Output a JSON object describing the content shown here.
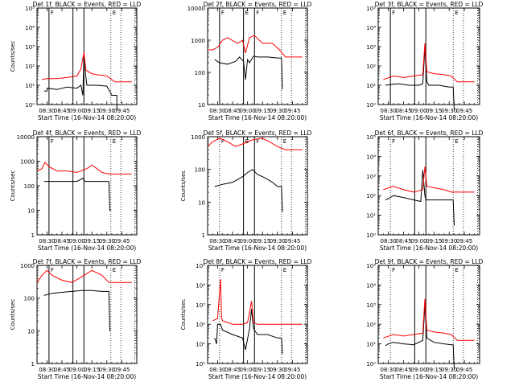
{
  "window": {
    "width_note": ""
  },
  "colors": {
    "events": "#000000",
    "lld": "#ff0000",
    "axis": "#000000",
    "background": "#ffffff"
  },
  "xaxis": {
    "label": "Start Time (16-Nov-14 08:20:00)",
    "tick_labels": [
      "08:30",
      "08:45",
      "09:00",
      "09:15",
      "09:30",
      "09:45"
    ],
    "range_minutes": [
      0,
      100
    ]
  },
  "chart_data": [
    {
      "title": "Det 1f, BLACK = Events, RED = LLD",
      "type": "line",
      "yscale": "log",
      "ylim": [
        1,
        100000
      ],
      "ytick_labels": [
        "10⁰",
        "10¹",
        "10²",
        "10³",
        "10⁴",
        "10⁵"
      ],
      "ylabel": "Counts/sec",
      "vlines_solid": [
        12,
        36,
        47
      ],
      "vlines_dotted": [
        74,
        84,
        98
      ],
      "markers": [
        {
          "text": "F",
          "x": 12
        },
        {
          "text": "E",
          "x": 74
        }
      ],
      "series": [
        {
          "name": "Events",
          "color": "#000000",
          "x": [
            7,
            10,
            10,
            20,
            30,
            40,
            44,
            46,
            47,
            49,
            50,
            60,
            70,
            75,
            80,
            80
          ],
          "y": [
            5,
            5,
            7,
            6,
            8,
            7,
            10,
            3,
            400,
            25,
            10,
            10,
            9,
            3,
            3,
            0.5
          ]
        },
        {
          "name": "LLD",
          "color": "#ff0000",
          "x": [
            5,
            10,
            20,
            30,
            40,
            44,
            47,
            49,
            55,
            60,
            70,
            78,
            85,
            95
          ],
          "y": [
            20,
            22,
            22,
            25,
            30,
            70,
            500,
            60,
            40,
            35,
            30,
            15,
            15,
            15
          ]
        }
      ]
    },
    {
      "title": "Det 2f, BLACK = Events, RED = LLD",
      "type": "line",
      "yscale": "log",
      "ylim": [
        10,
        10000
      ],
      "ytick_labels": [
        "10",
        "100",
        "1000",
        "10000"
      ],
      "ylabel": "",
      "vlines_solid": [
        12,
        36,
        47
      ],
      "vlines_dotted": [
        74,
        84,
        98
      ],
      "markers": [
        {
          "text": "F",
          "x": 12
        },
        {
          "text": "E",
          "x": 36
        },
        {
          "text": "F",
          "x": 47
        },
        {
          "text": "E",
          "x": 74
        }
      ],
      "series": [
        {
          "name": "Events",
          "color": "#000000",
          "x": [
            7,
            12,
            20,
            28,
            32,
            36,
            38,
            40,
            42,
            46,
            50,
            60,
            70,
            74,
            75
          ],
          "y": [
            250,
            200,
            180,
            220,
            300,
            220,
            60,
            250,
            200,
            320,
            300,
            300,
            280,
            280,
            30
          ]
        },
        {
          "name": "LLD",
          "color": "#ff0000",
          "x": [
            0,
            5,
            10,
            15,
            20,
            30,
            35,
            38,
            42,
            47,
            55,
            65,
            72,
            78,
            85,
            95
          ],
          "y": [
            500,
            500,
            600,
            1000,
            1200,
            800,
            1000,
            400,
            1200,
            1400,
            800,
            800,
            500,
            300,
            300,
            300
          ]
        }
      ]
    },
    {
      "title": "Det 3f, BLACK = Events, RED = LLD",
      "type": "line",
      "yscale": "log",
      "ylim": [
        1,
        100000
      ],
      "ytick_labels": [
        "10⁰",
        "10¹",
        "10²",
        "10³",
        "10⁴",
        "10⁵"
      ],
      "ylabel": "",
      "vlines_solid": [
        12,
        36,
        47
      ],
      "vlines_dotted": [
        74,
        84,
        98
      ],
      "markers": [
        {
          "text": "F",
          "x": 12
        },
        {
          "text": "E",
          "x": 74
        }
      ],
      "series": [
        {
          "name": "Events",
          "color": "#000000",
          "x": [
            7,
            20,
            30,
            40,
            44,
            46,
            48,
            50,
            60,
            70,
            74,
            75
          ],
          "y": [
            10,
            12,
            10,
            10,
            12,
            800,
            15,
            10,
            10,
            8,
            8,
            0.5
          ]
        },
        {
          "name": "LLD",
          "color": "#ff0000",
          "x": [
            5,
            15,
            25,
            35,
            44,
            46,
            48,
            55,
            65,
            72,
            78,
            85,
            95
          ],
          "y": [
            20,
            30,
            25,
            30,
            35,
            1500,
            50,
            40,
            35,
            30,
            15,
            15,
            15
          ]
        }
      ]
    },
    {
      "title": "Det 4f, BLACK = Events, RED = LLD",
      "type": "line",
      "yscale": "log",
      "ylim": [
        1,
        10000
      ],
      "ytick_labels": [
        "1",
        "10",
        "100",
        "1000",
        "10000"
      ],
      "ylabel": "Counts/sec",
      "vlines_solid": [
        12,
        36,
        47
      ],
      "vlines_dotted": [
        74,
        84,
        98
      ],
      "markers": [
        {
          "text": "F",
          "x": 12
        },
        {
          "text": "E",
          "x": 74
        }
      ],
      "series": [
        {
          "name": "Events",
          "color": "#000000",
          "x": [
            7,
            20,
            30,
            40,
            46,
            48,
            55,
            65,
            72,
            73,
            74
          ],
          "y": [
            150,
            150,
            150,
            150,
            200,
            150,
            150,
            150,
            150,
            10,
            10
          ]
        },
        {
          "name": "LLD",
          "color": "#ff0000",
          "x": [
            0,
            5,
            8,
            12,
            20,
            30,
            40,
            50,
            55,
            60,
            65,
            72,
            80,
            95
          ],
          "y": [
            400,
            500,
            900,
            600,
            400,
            400,
            350,
            500,
            700,
            500,
            350,
            300,
            300,
            300
          ]
        }
      ]
    },
    {
      "title": "Det 5f, BLACK = Events, RED = LLD",
      "type": "line",
      "yscale": "log",
      "ylim": [
        1,
        1000
      ],
      "ytick_labels": [
        "1",
        "10",
        "100",
        "1000"
      ],
      "ylabel": "Counts/sec",
      "vlines_solid": [
        36,
        47
      ],
      "vlines_dotted": [
        12,
        74,
        84,
        98
      ],
      "markers": [
        {
          "text": "F",
          "x": 12
        },
        {
          "text": "E",
          "x": 36
        },
        {
          "text": "F",
          "x": 47
        },
        {
          "text": "E",
          "x": 74
        }
      ],
      "series": [
        {
          "name": "Events",
          "color": "#000000",
          "x": [
            7,
            15,
            25,
            35,
            40,
            45,
            50,
            55,
            60,
            65,
            70,
            74,
            75
          ],
          "y": [
            30,
            35,
            40,
            60,
            80,
            100,
            70,
            60,
            50,
            40,
            30,
            30,
            5
          ]
        },
        {
          "name": "LLD",
          "color": "#ff0000",
          "x": [
            0,
            5,
            12,
            20,
            28,
            35,
            45,
            55,
            62,
            70,
            78,
            85,
            95
          ],
          "y": [
            500,
            700,
            900,
            700,
            500,
            600,
            800,
            900,
            700,
            500,
            400,
            400,
            400
          ]
        }
      ]
    },
    {
      "title": "Det 6f, BLACK = Events, RED = LLD",
      "type": "line",
      "yscale": "log",
      "ylim": [
        1,
        100000
      ],
      "ytick_labels": [
        "10⁰",
        "10¹",
        "10²",
        "10³",
        "10⁴",
        "10⁵"
      ],
      "ylabel": "",
      "vlines_solid": [
        36,
        47
      ],
      "vlines_dotted": [
        12,
        74,
        84,
        98
      ],
      "markers": [
        {
          "text": "F",
          "x": 12
        },
        {
          "text": "E",
          "x": 74
        }
      ],
      "series": [
        {
          "name": "Events",
          "color": "#000000",
          "x": [
            7,
            10,
            15,
            25,
            35,
            42,
            44,
            46,
            47,
            50,
            60,
            70,
            74,
            75
          ],
          "y": [
            60,
            70,
            100,
            80,
            60,
            50,
            2000,
            100,
            60,
            60,
            60,
            60,
            60,
            3
          ]
        },
        {
          "name": "LLD",
          "color": "#ff0000",
          "x": [
            5,
            15,
            25,
            35,
            44,
            46,
            48,
            55,
            65,
            72,
            78,
            85,
            95
          ],
          "y": [
            200,
            300,
            200,
            150,
            200,
            3000,
            300,
            250,
            200,
            150,
            150,
            150,
            150
          ]
        }
      ]
    },
    {
      "title": "Det 7f, BLACK = Events, RED = LLD",
      "type": "line",
      "yscale": "log",
      "ylim": [
        1,
        1000
      ],
      "ytick_labels": [
        "1",
        "10",
        "100",
        "1000"
      ],
      "ylabel": "Counts/sec",
      "vlines_solid": [
        12,
        36,
        47
      ],
      "vlines_dotted": [
        74,
        84,
        98
      ],
      "markers": [
        {
          "text": "F",
          "x": 12
        },
        {
          "text": "E",
          "x": 74
        }
      ],
      "series": [
        {
          "name": "Events",
          "color": "#000000",
          "x": [
            7,
            15,
            25,
            35,
            45,
            55,
            65,
            72,
            73,
            74
          ],
          "y": [
            120,
            140,
            150,
            160,
            170,
            170,
            160,
            160,
            10,
            10
          ]
        },
        {
          "name": "LLD",
          "color": "#ff0000",
          "x": [
            0,
            5,
            10,
            15,
            25,
            35,
            45,
            55,
            65,
            72,
            80,
            95
          ],
          "y": [
            300,
            500,
            700,
            500,
            350,
            300,
            450,
            700,
            500,
            300,
            300,
            300
          ]
        }
      ]
    },
    {
      "title": "Det 8f, BLACK = Events, RED = LLD",
      "type": "line",
      "yscale": "log",
      "ylim": [
        1,
        100000
      ],
      "ytick_labels": [
        "10⁰",
        "10¹",
        "10²",
        "10³",
        "10⁴",
        "10⁵"
      ],
      "ylabel": "Counts/sec",
      "vlines_solid": [
        36,
        47
      ],
      "vlines_dotted": [
        12,
        74,
        84,
        98
      ],
      "markers": [
        {
          "text": "F",
          "x": 12
        },
        {
          "text": "E",
          "x": 74
        }
      ],
      "series": [
        {
          "name": "Events",
          "color": "#000000",
          "x": [
            7,
            9,
            10,
            13,
            15,
            25,
            35,
            38,
            42,
            44,
            46,
            50,
            60,
            70,
            74,
            75
          ],
          "y": [
            20,
            10,
            100,
            100,
            50,
            30,
            20,
            5,
            60,
            600,
            60,
            30,
            30,
            20,
            20,
            3
          ]
        },
        {
          "name": "LLD",
          "color": "#ff0000",
          "x": [
            5,
            10,
            13,
            14,
            15,
            25,
            35,
            40,
            44,
            46,
            50,
            60,
            70,
            78,
            85,
            95
          ],
          "y": [
            150,
            200,
            20000,
            200,
            150,
            100,
            100,
            120,
            1500,
            120,
            100,
            100,
            100,
            100,
            100,
            100
          ]
        }
      ]
    },
    {
      "title": "Det 9f, BLACK = Events, RED = LLD",
      "type": "line",
      "yscale": "log",
      "ylim": [
        1,
        100000
      ],
      "ytick_labels": [
        "10⁰",
        "10¹",
        "10²",
        "10³",
        "10⁴",
        "10⁵"
      ],
      "ylabel": "",
      "vlines_solid": [
        36,
        47
      ],
      "vlines_dotted": [
        12,
        74,
        84,
        98
      ],
      "markers": [
        {
          "text": "F",
          "x": 12
        },
        {
          "text": "E",
          "x": 74
        }
      ],
      "series": [
        {
          "name": "Events",
          "color": "#000000",
          "x": [
            7,
            10,
            15,
            25,
            35,
            44,
            46,
            48,
            55,
            65,
            72,
            74,
            75
          ],
          "y": [
            8,
            10,
            12,
            10,
            9,
            15,
            900,
            20,
            12,
            10,
            9,
            9,
            0.5
          ]
        },
        {
          "name": "LLD",
          "color": "#ff0000",
          "x": [
            5,
            15,
            25,
            35,
            44,
            46,
            48,
            55,
            65,
            72,
            78,
            85,
            95
          ],
          "y": [
            20,
            30,
            25,
            30,
            35,
            2000,
            50,
            40,
            35,
            30,
            15,
            15,
            15
          ]
        }
      ]
    }
  ]
}
